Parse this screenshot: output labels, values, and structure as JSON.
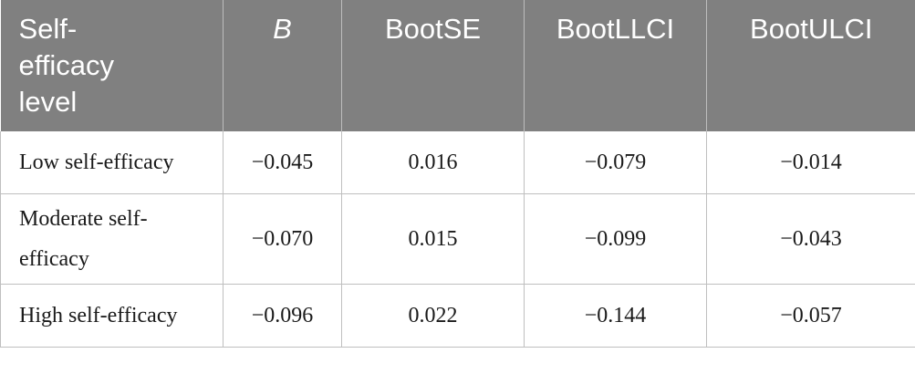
{
  "table": {
    "headers": [
      "Self-efficacy level",
      "B",
      "BootSE",
      "BootLLCI",
      "BootULCI"
    ],
    "rows": [
      [
        "Low self-efficacy",
        "−0.045",
        "0.016",
        "−0.079",
        "−0.014"
      ],
      [
        "Moderate self-efficacy",
        "−0.070",
        "0.015",
        "−0.099",
        "−0.043"
      ],
      [
        "High self-efficacy",
        "−0.096",
        "0.022",
        "−0.144",
        "−0.057"
      ]
    ]
  }
}
